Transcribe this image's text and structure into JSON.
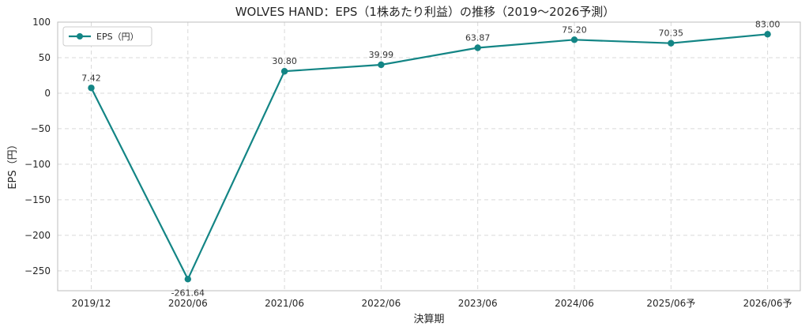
{
  "chart_data": {
    "type": "line",
    "title": "WOLVES HAND：EPS（1株あたり利益）の推移（2019～2026予測）",
    "xlabel": "決算期",
    "ylabel": "EPS（円）",
    "categories": [
      "2019/12",
      "2020/06",
      "2021/06",
      "2022/06",
      "2023/06",
      "2024/06",
      "2025/06予",
      "2026/06予"
    ],
    "series": [
      {
        "name": "EPS（円）",
        "color": "#138585",
        "values": [
          7.42,
          -261.64,
          30.8,
          39.99,
          63.87,
          75.2,
          70.35,
          83.0
        ],
        "labels": [
          "7.42",
          "-261.64",
          "30.80",
          "39.99",
          "63.87",
          "75.20",
          "70.35",
          "83.00"
        ]
      }
    ],
    "ylim": [
      -278,
      100
    ],
    "yticks": [
      100,
      50,
      0,
      -50,
      -100,
      -150,
      -200,
      -250
    ],
    "ytick_labels": [
      "100",
      "50",
      "0",
      "−50",
      "−100",
      "−150",
      "−200",
      "−250"
    ],
    "grid": true,
    "legend_position": "top-left"
  }
}
